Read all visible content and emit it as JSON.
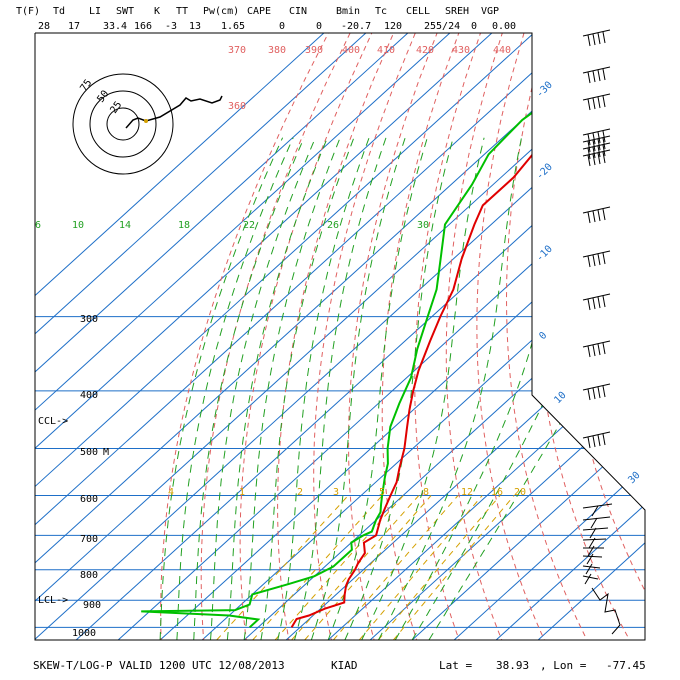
{
  "header": {
    "labels": [
      "T(F)",
      "Td",
      "LI",
      "SWT",
      "K",
      "TT",
      "Pw(cm)",
      "CAPE",
      "CIN",
      "Bmin",
      "Tc",
      "CELL",
      "SREH",
      "VGP"
    ],
    "values": [
      "28",
      "17",
      "33.4",
      "166",
      "-3",
      "13",
      "1.65",
      "0",
      "0",
      "-20.7",
      "120",
      "255/24",
      "0",
      "0.00"
    ]
  },
  "footer": {
    "title": "SKEW-T/LOG-P VALID 1200 UTC 12/08/2013",
    "station": "KIAD",
    "lat_label": "Lat =",
    "lat_value": "38.93",
    "lon_label": ", Lon =",
    "lon_value": "-77.45"
  },
  "chart_data": {
    "type": "line",
    "title": "SKEW-T/LOG-P VALID 1200 UTC 12/08/2013",
    "pressure_levels": [
      1000,
      900,
      800,
      700,
      600,
      500,
      400,
      300
    ],
    "level_markers": [
      {
        "label": "CCL->",
        "p": 470
      },
      {
        "label": "LCL->",
        "p": 880
      },
      {
        "label": "M",
        "p": 502
      }
    ],
    "isotherm_labels": [
      "-30",
      "-20",
      "-10",
      "0",
      "10",
      "30"
    ],
    "mixing_ratio_labels": [
      "4",
      "1",
      "2",
      "3",
      "5",
      "8",
      "12",
      "16",
      "20"
    ],
    "moist_adiabat_labels": [
      "6",
      "10",
      "14",
      "18",
      "22",
      "26",
      "30"
    ],
    "theta_labels": [
      "370",
      "380",
      "390",
      "400",
      "410",
      "420",
      "430",
      "440",
      "360"
    ],
    "series": [
      {
        "name": "Temperature",
        "color": "#e00000",
        "points": [
          [
            1000,
            -2
          ],
          [
            968,
            -3
          ],
          [
            955,
            -1
          ],
          [
            930,
            1
          ],
          [
            908,
            4
          ],
          [
            880,
            2
          ],
          [
            850,
            0
          ],
          [
            830,
            -1
          ],
          [
            800,
            -2
          ],
          [
            780,
            -3
          ],
          [
            750,
            -4
          ],
          [
            720,
            -7
          ],
          [
            700,
            -6
          ],
          [
            660,
            -9
          ],
          [
            630,
            -11
          ],
          [
            600,
            -13
          ],
          [
            570,
            -15
          ],
          [
            540,
            -18
          ],
          [
            500,
            -22
          ],
          [
            460,
            -27
          ],
          [
            430,
            -31
          ],
          [
            400,
            -35
          ],
          [
            370,
            -39
          ],
          [
            330,
            -44
          ],
          [
            300,
            -48
          ],
          [
            270,
            -52
          ],
          [
            240,
            -58
          ],
          [
            210,
            -64
          ],
          [
            195,
            -67
          ],
          [
            175,
            -67
          ],
          [
            155,
            -69
          ],
          [
            145,
            -66
          ],
          [
            130,
            -67
          ],
          [
            115,
            -68
          ],
          [
            100,
            -67
          ]
        ]
      },
      {
        "name": "Dewpoint",
        "color": "#00c000",
        "points": [
          [
            1000,
            -12
          ],
          [
            970,
            -12
          ],
          [
            955,
            -20
          ],
          [
            940,
            -42
          ],
          [
            935,
            -20
          ],
          [
            915,
            -18
          ],
          [
            880,
            -20
          ],
          [
            845,
            -14
          ],
          [
            820,
            -10
          ],
          [
            790,
            -8
          ],
          [
            760,
            -8
          ],
          [
            740,
            -8
          ],
          [
            720,
            -10
          ],
          [
            700,
            -9
          ],
          [
            690,
            -8
          ],
          [
            660,
            -10
          ],
          [
            640,
            -11
          ],
          [
            620,
            -13
          ],
          [
            600,
            -15
          ],
          [
            560,
            -19
          ],
          [
            530,
            -22
          ],
          [
            500,
            -26
          ],
          [
            460,
            -31
          ],
          [
            420,
            -35
          ],
          [
            380,
            -39
          ],
          [
            340,
            -45
          ],
          [
            300,
            -51
          ],
          [
            270,
            -56
          ],
          [
            240,
            -63
          ],
          [
            210,
            -71
          ],
          [
            180,
            -75
          ],
          [
            160,
            -79
          ],
          [
            140,
            -80
          ],
          [
            125,
            -78
          ],
          [
            110,
            -80
          ],
          [
            100,
            -80
          ]
        ]
      }
    ],
    "wind_barbs_count": 22
  }
}
